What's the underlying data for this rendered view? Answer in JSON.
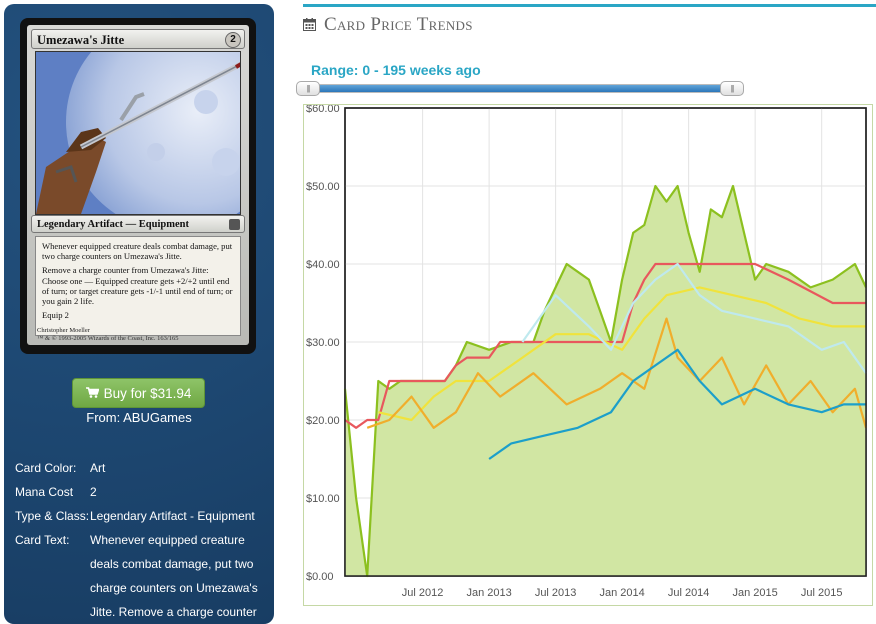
{
  "card": {
    "name": "Umezawa's Jitte",
    "mana_cost": "2",
    "type_line": "Legendary Artifact — Equipment",
    "text_paragraphs": [
      "Whenever equipped creature deals combat damage, put two charge counters on Umezawa's Jitte.",
      "Remove a charge counter from Umezawa's Jitte: Choose one — Equipped creature gets +2/+2 until end of turn; or target creature gets -1/-1 until end of turn; or you gain 2 life.",
      "Equip 2"
    ],
    "artist": "Christopher Moeller",
    "footer_legal": "™ & © 1993-2005 Wizards of the Coast, Inc. 163/165"
  },
  "buy": {
    "label": "Buy for $31.94",
    "icon": "cart-icon",
    "from": "From: ABUGames"
  },
  "info": [
    {
      "key": "Card Color:",
      "value": "Art"
    },
    {
      "key": "Mana Cost",
      "value": "2"
    },
    {
      "key": "Type & Class:",
      "value": "Legendary Artifact - Equipment"
    },
    {
      "key": "Card Text:",
      "value": "Whenever equipped creature deals combat damage, put two charge counters on Umezawa's Jitte. Remove a charge counter"
    }
  ],
  "section": {
    "title": "Card Price Trends",
    "icon": "calendar-icon"
  },
  "range": {
    "label": "Range: 0 - 195 weeks ago",
    "min_weeks": 0,
    "max_weeks": 195
  },
  "colors": {
    "accent": "#2aa6c5",
    "panel": "#1d4771",
    "buy_green": "#7bb552",
    "fill": "#d1e6a3",
    "green_line": "#8cc01f",
    "red_line": "#e8585d",
    "yellow_line": "#f0e33c",
    "orange_line": "#f0ae2c",
    "blue_line": "#1c9fca",
    "lightblue_line": "#bfe9ee"
  },
  "chart_data": {
    "type": "line",
    "y_unit": "$",
    "ylim": [
      0,
      60
    ],
    "yticks": [
      "$0.00",
      "$10.00",
      "$20.00",
      "$30.00",
      "$40.00",
      "$50.00",
      "$60.00"
    ],
    "xticks": [
      "Jul 2012",
      "Jan 2013",
      "Jul 2013",
      "Jan 2014",
      "Jul 2014",
      "Jan 2015",
      "Jul 2015"
    ],
    "x_range": [
      "2011-12",
      "2015-11"
    ],
    "grid": true,
    "series": [
      {
        "color": "green",
        "area": true,
        "points": [
          [
            "2011-12",
            24
          ],
          [
            "2012-01",
            10
          ],
          [
            "2012-02",
            0
          ],
          [
            "2012-03",
            25
          ],
          [
            "2012-04",
            24
          ],
          [
            "2012-05",
            25
          ],
          [
            "2012-07",
            25
          ],
          [
            "2012-09",
            25
          ],
          [
            "2012-10",
            27
          ],
          [
            "2012-11",
            30
          ],
          [
            "2013-01",
            29
          ],
          [
            "2013-03",
            30
          ],
          [
            "2013-05",
            30
          ],
          [
            "2013-06",
            34
          ],
          [
            "2013-07",
            37
          ],
          [
            "2013-08",
            40
          ],
          [
            "2013-09",
            39
          ],
          [
            "2013-10",
            38
          ],
          [
            "2013-11",
            34
          ],
          [
            "2013-12",
            30
          ],
          [
            "2014-01",
            38
          ],
          [
            "2014-02",
            44
          ],
          [
            "2014-03",
            45
          ],
          [
            "2014-04",
            50
          ],
          [
            "2014-05",
            48
          ],
          [
            "2014-06",
            50
          ],
          [
            "2014-07",
            44
          ],
          [
            "2014-08",
            39
          ],
          [
            "2014-09",
            47
          ],
          [
            "2014-10",
            46
          ],
          [
            "2014-11",
            50
          ],
          [
            "2015-01",
            38
          ],
          [
            "2015-02",
            40
          ],
          [
            "2015-04",
            39
          ],
          [
            "2015-06",
            37
          ],
          [
            "2015-08",
            38
          ],
          [
            "2015-10",
            40
          ],
          [
            "2015-11",
            37
          ]
        ]
      },
      {
        "color": "red",
        "points": [
          [
            "2011-12",
            20
          ],
          [
            "2012-01",
            19
          ],
          [
            "2012-02",
            20
          ],
          [
            "2012-03",
            20
          ],
          [
            "2012-04",
            25
          ],
          [
            "2012-09",
            25
          ],
          [
            "2012-10",
            27
          ],
          [
            "2012-11",
            28
          ],
          [
            "2013-01",
            28
          ],
          [
            "2013-02",
            30
          ],
          [
            "2014-01",
            30
          ],
          [
            "2014-02",
            35
          ],
          [
            "2014-03",
            38
          ],
          [
            "2014-04",
            40
          ],
          [
            "2015-01",
            40
          ],
          [
            "2015-04",
            38
          ],
          [
            "2015-08",
            35
          ],
          [
            "2015-11",
            35
          ]
        ]
      },
      {
        "color": "yellow",
        "points": [
          [
            "2012-03",
            21
          ],
          [
            "2012-06",
            20
          ],
          [
            "2012-08",
            23
          ],
          [
            "2012-10",
            25
          ],
          [
            "2013-01",
            25
          ],
          [
            "2013-04",
            28
          ],
          [
            "2013-07",
            31
          ],
          [
            "2013-10",
            31
          ],
          [
            "2014-01",
            29
          ],
          [
            "2014-03",
            33
          ],
          [
            "2014-05",
            36
          ],
          [
            "2014-08",
            37
          ],
          [
            "2014-11",
            36
          ],
          [
            "2015-02",
            35
          ],
          [
            "2015-05",
            33
          ],
          [
            "2015-08",
            32
          ],
          [
            "2015-11",
            32
          ]
        ]
      },
      {
        "color": "orange",
        "points": [
          [
            "2012-02",
            19
          ],
          [
            "2012-04",
            20
          ],
          [
            "2012-06",
            23
          ],
          [
            "2012-08",
            19
          ],
          [
            "2012-10",
            21
          ],
          [
            "2012-12",
            26
          ],
          [
            "2013-02",
            23
          ],
          [
            "2013-05",
            26
          ],
          [
            "2013-08",
            22
          ],
          [
            "2013-11",
            24
          ],
          [
            "2014-01",
            26
          ],
          [
            "2014-03",
            24
          ],
          [
            "2014-05",
            33
          ],
          [
            "2014-06",
            28
          ],
          [
            "2014-08",
            25
          ],
          [
            "2014-10",
            28
          ],
          [
            "2014-12",
            22
          ],
          [
            "2015-02",
            27
          ],
          [
            "2015-04",
            22
          ],
          [
            "2015-06",
            25
          ],
          [
            "2015-08",
            21
          ],
          [
            "2015-10",
            24
          ],
          [
            "2015-11",
            19
          ]
        ]
      },
      {
        "color": "blue",
        "points": [
          [
            "2013-01",
            15
          ],
          [
            "2013-03",
            17
          ],
          [
            "2013-06",
            18
          ],
          [
            "2013-09",
            19
          ],
          [
            "2013-12",
            21
          ],
          [
            "2014-02",
            25
          ],
          [
            "2014-04",
            27
          ],
          [
            "2014-06",
            29
          ],
          [
            "2014-08",
            25
          ],
          [
            "2014-10",
            22
          ],
          [
            "2015-01",
            24
          ],
          [
            "2015-04",
            22
          ],
          [
            "2015-07",
            21
          ],
          [
            "2015-09",
            22
          ],
          [
            "2015-11",
            22
          ]
        ]
      },
      {
        "color": "lightblue",
        "points": [
          [
            "2013-04",
            30
          ],
          [
            "2013-07",
            36
          ],
          [
            "2013-10",
            32
          ],
          [
            "2013-12",
            29
          ],
          [
            "2014-02",
            35
          ],
          [
            "2014-04",
            38
          ],
          [
            "2014-06",
            40
          ],
          [
            "2014-08",
            36
          ],
          [
            "2014-10",
            34
          ],
          [
            "2015-01",
            33
          ],
          [
            "2015-04",
            32
          ],
          [
            "2015-07",
            29
          ],
          [
            "2015-09",
            30
          ],
          [
            "2015-11",
            26
          ]
        ]
      }
    ]
  }
}
